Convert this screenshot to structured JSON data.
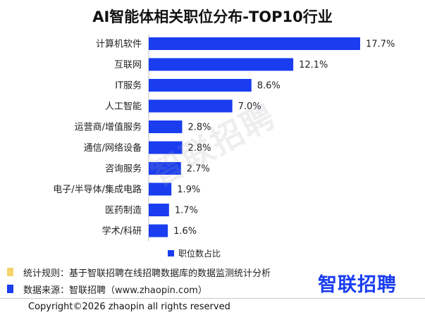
{
  "chart_data": {
    "type": "bar",
    "orientation": "horizontal",
    "title": "AI智能体相关职位分布-TOP10行业",
    "categories": [
      "计算机软件",
      "互联网",
      "IT服务",
      "人工智能",
      "运营商/增值服务",
      "通信/网络设备",
      "咨询服务",
      "电子/半导体/集成电路",
      "医药制造",
      "学术/科研"
    ],
    "series": [
      {
        "name": "职位数占比",
        "values": [
          17.7,
          12.1,
          8.6,
          7.0,
          2.8,
          2.8,
          2.7,
          1.9,
          1.7,
          1.6
        ],
        "value_labels": [
          "17.7%",
          "12.1%",
          "8.6%",
          "7.0%",
          "2.8%",
          "2.8%",
          "2.7%",
          "1.9%",
          "1.7%",
          "1.6%"
        ]
      }
    ],
    "xlim": [
      0,
      18
    ],
    "grid": false,
    "legend_position": "bottom"
  },
  "colors": {
    "bar": "#1a3df0",
    "note_yellow": "#f5d36b",
    "note_blue": "#1a3df0"
  },
  "watermark": "智联招聘",
  "notes": {
    "rule": "统计规则：基于智联招聘在线招聘数据库的数据监测统计分析",
    "source": "数据来源：智联招聘（www.zhaopin.com）"
  },
  "brand": "智联招聘",
  "copyright": "Copyright©2026 zhaopin all rights reserved"
}
